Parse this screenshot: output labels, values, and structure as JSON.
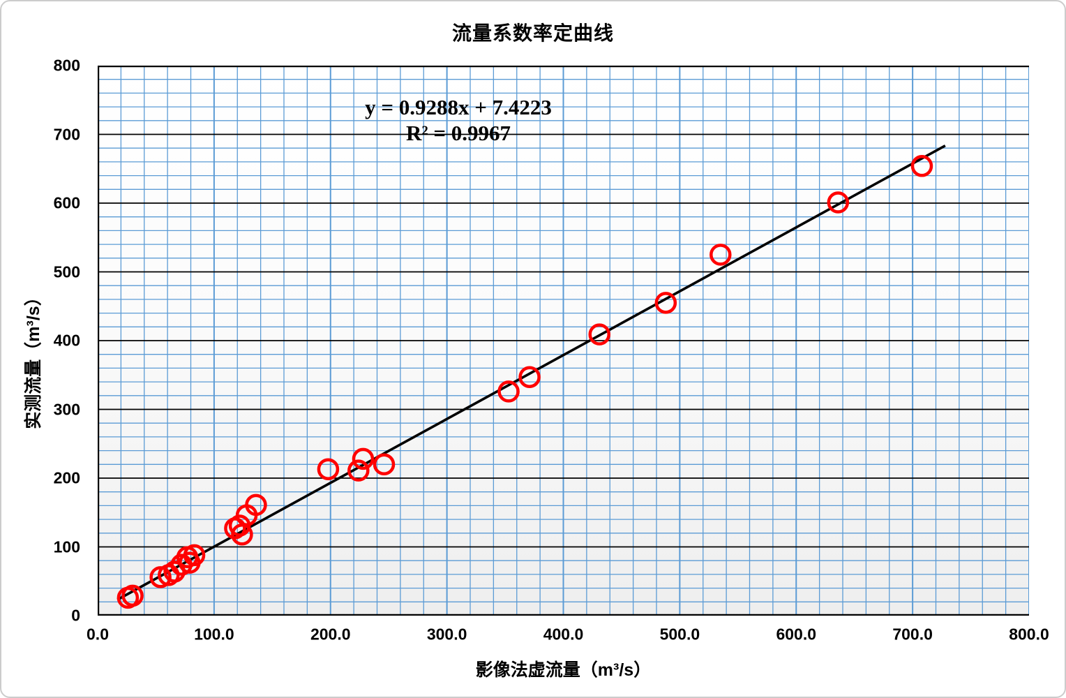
{
  "window": {
    "background_color": "#ffffff",
    "frame_border_color": "#cccccc"
  },
  "chart_data": {
    "type": "scatter",
    "title": "流量系数率定曲线",
    "xlabel": "影像法虚流量（m³/s）",
    "ylabel": "实测流量（m³/s）",
    "xlim": [
      0,
      800
    ],
    "ylim": [
      0,
      800
    ],
    "x_tick_values": [
      0,
      100,
      200,
      300,
      400,
      500,
      600,
      700,
      800
    ],
    "x_tick_labels": [
      "0.0",
      "100.0",
      "200.0",
      "300.0",
      "400.0",
      "500.0",
      "600.0",
      "700.0",
      "800.0"
    ],
    "y_tick_values": [
      0,
      100,
      200,
      300,
      400,
      500,
      600,
      700,
      800
    ],
    "y_tick_labels": [
      "0",
      "100",
      "200",
      "300",
      "400",
      "500",
      "600",
      "700",
      "800"
    ],
    "minor_grid_step": 20,
    "major_grid_step": 100,
    "grid": {
      "minor_color": "#5B9BD5",
      "major_vertical_color": "#5B9BD5",
      "major_horizontal_color": "#000000",
      "axis_color": "#000000",
      "plot_fill_top": "#ffffff",
      "plot_fill_bottom": "#eeeeee"
    },
    "annotation": {
      "equation": "y = 0.9288x + 7.4223",
      "r_squared": "R² = 0.9967"
    },
    "trendline": {
      "slope": 0.9288,
      "intercept": 7.4223,
      "x_start": 17,
      "x_end": 728,
      "color": "#000000",
      "width": 3.6
    },
    "marker": {
      "color": "#FF0000",
      "radius": 13.5,
      "stroke_width": 4.5
    },
    "points": [
      [
        26,
        26
      ],
      [
        30,
        29
      ],
      [
        54,
        56
      ],
      [
        61,
        59
      ],
      [
        66,
        64
      ],
      [
        72,
        74
      ],
      [
        79,
        77
      ],
      [
        77,
        85
      ],
      [
        83,
        88
      ],
      [
        118,
        127
      ],
      [
        122,
        131
      ],
      [
        124,
        118
      ],
      [
        128,
        146
      ],
      [
        136,
        161
      ],
      [
        198,
        213
      ],
      [
        224,
        211
      ],
      [
        228,
        228
      ],
      [
        246,
        220
      ],
      [
        353,
        326
      ],
      [
        371,
        347
      ],
      [
        431,
        409
      ],
      [
        488,
        455
      ],
      [
        535,
        525
      ],
      [
        636,
        601
      ],
      [
        708,
        654
      ]
    ]
  }
}
